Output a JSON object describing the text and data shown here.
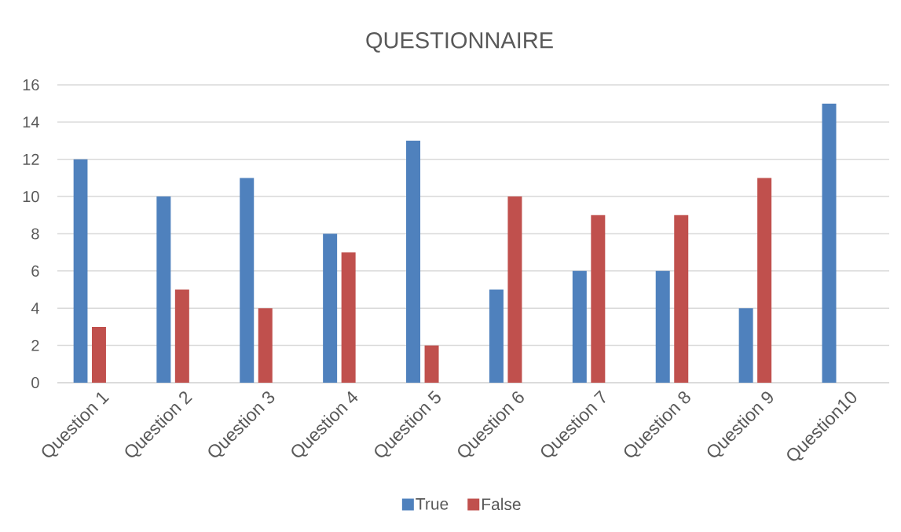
{
  "chart_data": {
    "type": "bar",
    "title": "QUESTIONNAIRE",
    "categories": [
      "Question 1",
      "Question 2",
      "Question 3",
      "Question 4",
      "Question 5",
      "Question 6",
      "Question 7",
      "Question 8",
      "Question 9",
      "Question10"
    ],
    "series": [
      {
        "name": "True",
        "color": "#4f81bd",
        "values": [
          12,
          10,
          11,
          8,
          13,
          5,
          6,
          6,
          4,
          15
        ]
      },
      {
        "name": "False",
        "color": "#c0504d",
        "values": [
          3,
          5,
          4,
          7,
          2,
          10,
          9,
          9,
          11,
          0
        ]
      }
    ],
    "ylim": [
      0,
      16
    ],
    "yticks": [
      0,
      2,
      4,
      6,
      8,
      10,
      12,
      14,
      16
    ],
    "grid": "y",
    "legend": "bottom"
  }
}
